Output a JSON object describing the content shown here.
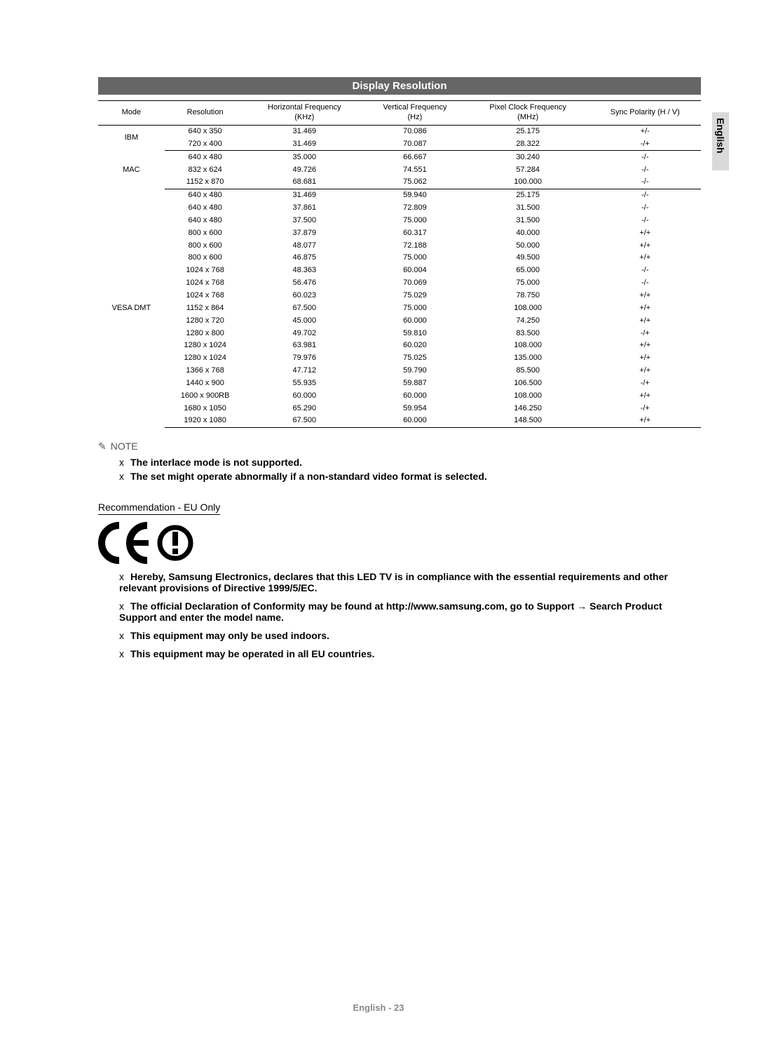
{
  "side_tab": "English",
  "section_title": "Display Resolution",
  "table": {
    "columns": [
      "Mode",
      "Resolution",
      "Horizontal Frequency\n(KHz)",
      "Vertical Frequency\n(Hz)",
      "Pixel Clock Frequency\n(MHz)",
      "Sync Polarity (H / V)"
    ],
    "groups": [
      {
        "mode": "IBM",
        "rows": [
          [
            "640 x 350",
            "31.469",
            "70.086",
            "25.175",
            "+/-"
          ],
          [
            "720 x 400",
            "31.469",
            "70.087",
            "28.322",
            "-/+"
          ]
        ]
      },
      {
        "mode": "MAC",
        "rows": [
          [
            "640 x 480",
            "35.000",
            "66.667",
            "30.240",
            "-/-"
          ],
          [
            "832 x 624",
            "49.726",
            "74.551",
            "57.284",
            "-/-"
          ],
          [
            "1152 x 870",
            "68.681",
            "75.062",
            "100.000",
            "-/-"
          ]
        ]
      },
      {
        "mode": "VESA DMT",
        "rows": [
          [
            "640 x 480",
            "31.469",
            "59.940",
            "25.175",
            "-/-"
          ],
          [
            "640 x 480",
            "37.861",
            "72.809",
            "31.500",
            "-/-"
          ],
          [
            "640 x 480",
            "37.500",
            "75.000",
            "31.500",
            "-/-"
          ],
          [
            "800 x 600",
            "37.879",
            "60.317",
            "40.000",
            "+/+"
          ],
          [
            "800 x 600",
            "48.077",
            "72.188",
            "50.000",
            "+/+"
          ],
          [
            "800 x 600",
            "46.875",
            "75.000",
            "49.500",
            "+/+"
          ],
          [
            "1024 x 768",
            "48.363",
            "60.004",
            "65.000",
            "-/-"
          ],
          [
            "1024 x 768",
            "56.476",
            "70.069",
            "75.000",
            "-/-"
          ],
          [
            "1024 x 768",
            "60.023",
            "75.029",
            "78.750",
            "+/+"
          ],
          [
            "1152 x 864",
            "67.500",
            "75.000",
            "108.000",
            "+/+"
          ],
          [
            "1280 x 720",
            "45.000",
            "60.000",
            "74.250",
            "+/+"
          ],
          [
            "1280 x 800",
            "49.702",
            "59.810",
            "83.500",
            "-/+"
          ],
          [
            "1280 x 1024",
            "63.981",
            "60.020",
            "108.000",
            "+/+"
          ],
          [
            "1280 x 1024",
            "79.976",
            "75.025",
            "135.000",
            "+/+"
          ],
          [
            "1366 x 768",
            "47.712",
            "59.790",
            "85.500",
            "+/+"
          ],
          [
            "1440 x 900",
            "55.935",
            "59.887",
            "106.500",
            "-/+"
          ],
          [
            "1600 x 900RB",
            "60.000",
            "60.000",
            "108.000",
            "+/+"
          ],
          [
            "1680 x 1050",
            "65.290",
            "59.954",
            "146.250",
            "-/+"
          ],
          [
            "1920 x 1080",
            "67.500",
            "60.000",
            "148.500",
            "+/+"
          ]
        ]
      }
    ]
  },
  "note": {
    "label": "NOTE",
    "icon": "✎",
    "items": [
      "The interlace mode is not supported.",
      "The set might operate abnormally if a non-standard video format is selected."
    ]
  },
  "recommendation": {
    "label": "Recommendation - EU Only",
    "items": [
      "Hereby, Samsung Electronics, declares that this LED TV is in compliance with the essential requirements and other relevant provisions of Directive 1999/5/EC.",
      "The ofﬁcial Declaration of Conformity may be found at http://www.samsung.com, go to Support → Search Product Support and enter the model name.",
      "This equipment may only be used indoors.",
      "This equipment may be operated in all EU countries."
    ]
  },
  "footer": "English - 23",
  "bullet_glyph": "x"
}
